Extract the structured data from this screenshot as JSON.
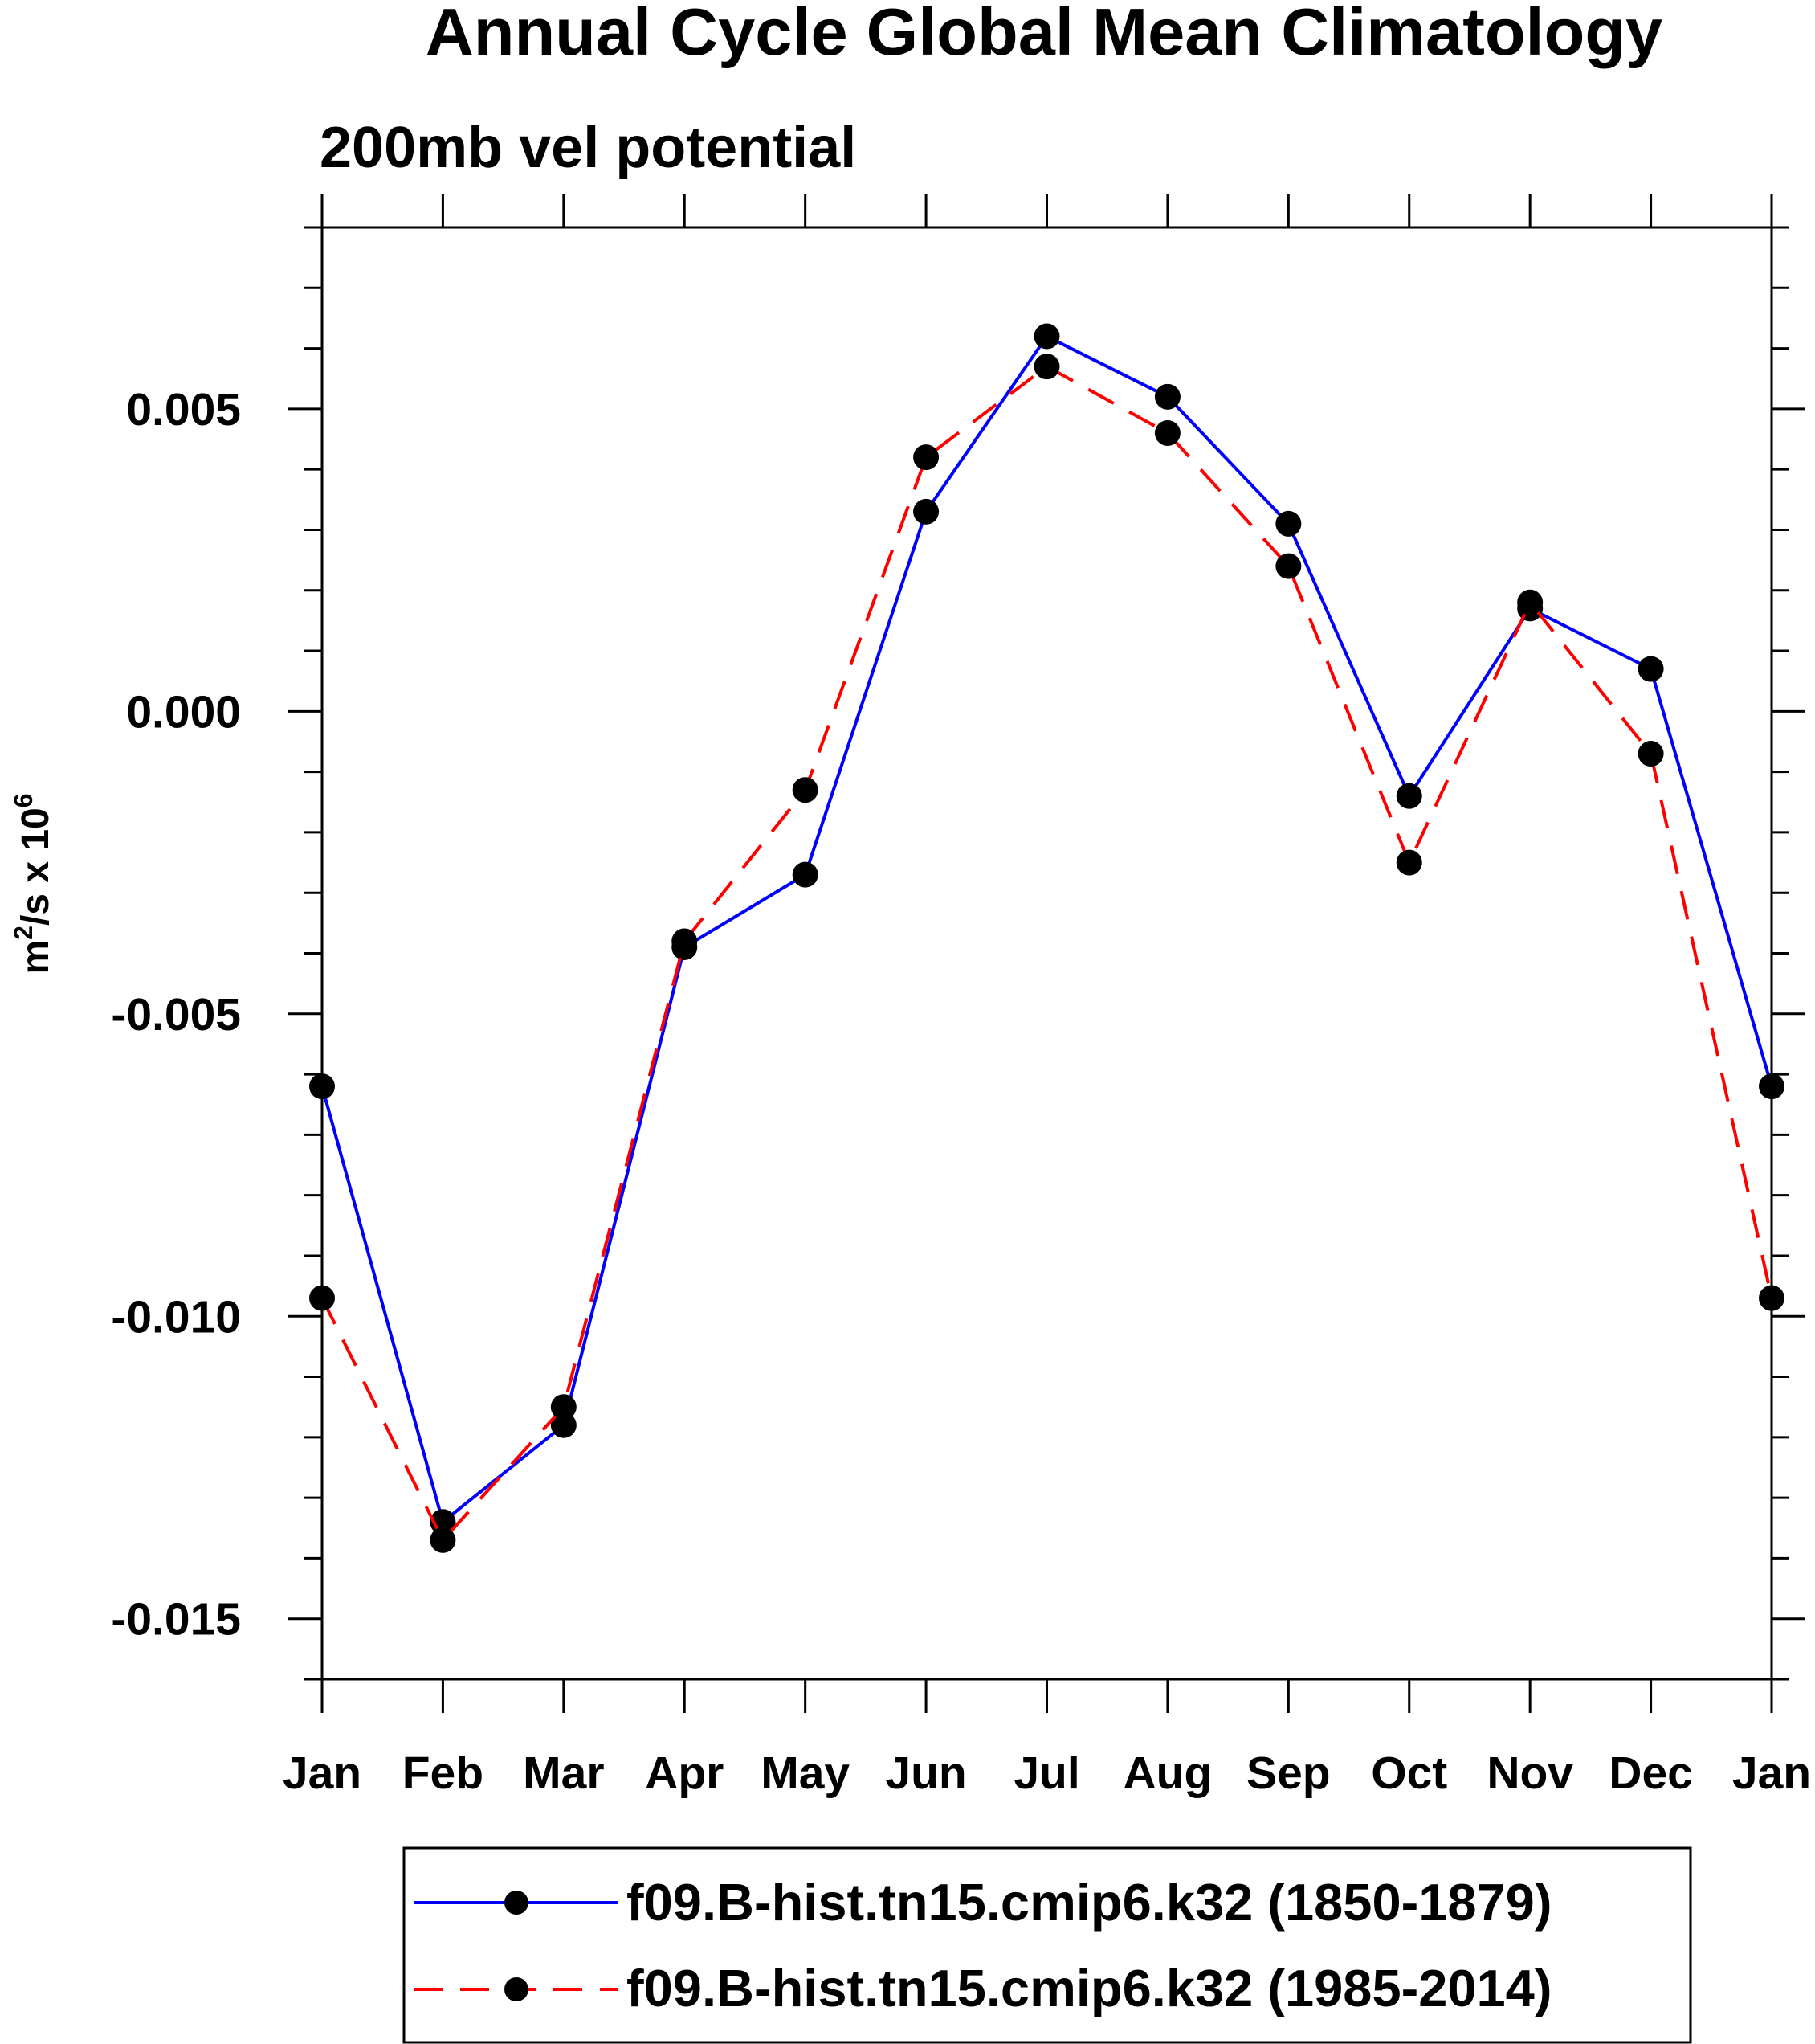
{
  "chart_data": {
    "type": "line",
    "title": "Annual Cycle Global Mean Climatology",
    "subtitle": "200mb vel potential",
    "ylabel_base": "m",
    "ylabel_sup1": "2",
    "ylabel_mid": "/s x 10",
    "ylabel_sup2": "6",
    "xlabel": "",
    "categories": [
      "Jan",
      "Feb",
      "Mar",
      "Apr",
      "May",
      "Jun",
      "Jul",
      "Aug",
      "Sep",
      "Oct",
      "Nov",
      "Dec",
      "Jan"
    ],
    "ylim": [
      -0.016,
      0.008
    ],
    "yticks": [
      -0.015,
      -0.01,
      -0.005,
      0.0,
      0.005
    ],
    "ytick_labels": [
      "-0.015",
      "-0.010",
      "-0.005",
      "0.000",
      "0.005"
    ],
    "series": [
      {
        "name": "f09.B-hist.tn15.cmip6.k32 (1850-1879)",
        "color": "#0000ff",
        "dash": "solid",
        "values": [
          -0.0062,
          -0.0134,
          -0.0118,
          -0.0039,
          -0.0027,
          0.0033,
          0.0062,
          0.0052,
          0.0031,
          -0.0014,
          0.0017,
          0.0007,
          -0.0062
        ]
      },
      {
        "name": "f09.B-hist.tn15.cmip6.k32 (1985-2014)",
        "color": "#ff0000",
        "dash": "dashed",
        "values": [
          -0.0097,
          -0.0137,
          -0.0115,
          -0.0038,
          -0.0013,
          0.0042,
          0.0057,
          0.0046,
          0.0024,
          -0.0025,
          0.0018,
          -0.0007,
          -0.0097
        ]
      }
    ],
    "legend_position": "bottom"
  }
}
